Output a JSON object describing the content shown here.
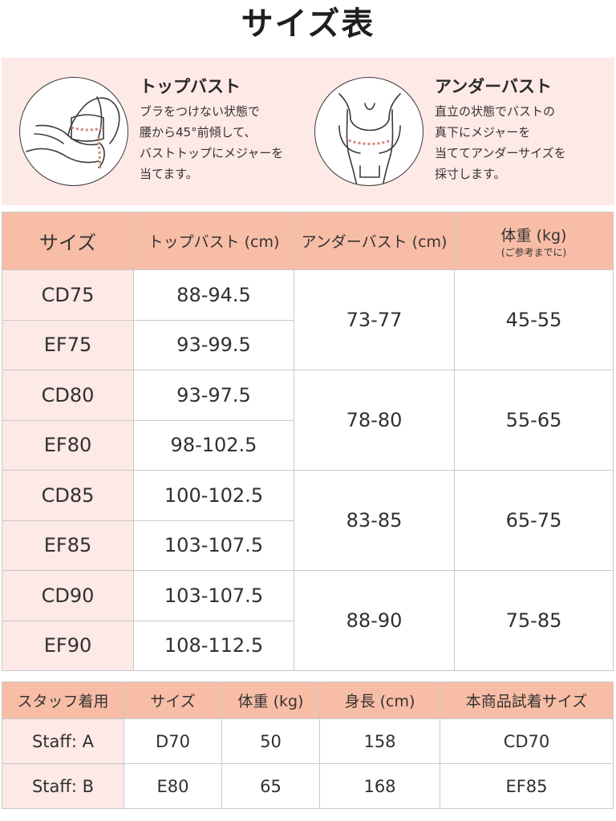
{
  "title": "サイズ表",
  "guides": [
    {
      "heading": "トップバスト",
      "lines": [
        "ブラをつけない状態で",
        "腰から45°前傾して、",
        "バストトップにメジャーを",
        "当てます。"
      ],
      "illustration": "leaning-measure-icon"
    },
    {
      "heading": "アンダーバスト",
      "lines": [
        "直立の状態でバストの",
        "真下にメジャーを",
        "当ててアンダーサイズを",
        "採寸します。"
      ],
      "illustration": "standing-measure-icon"
    }
  ],
  "size_table": {
    "headers": {
      "size": "サイズ",
      "top_bust": "トップバスト (cm)",
      "under_bust": "アンダーバスト (cm)",
      "weight": "体重 (kg)",
      "weight_note": "(ご参考までに)"
    },
    "groups": [
      {
        "under_bust": "73-77",
        "weight": "45-55",
        "rows": [
          {
            "size": "CD75",
            "top_bust": "88-94.5"
          },
          {
            "size": "EF75",
            "top_bust": "93-99.5"
          }
        ]
      },
      {
        "under_bust": "78-80",
        "weight": "55-65",
        "rows": [
          {
            "size": "CD80",
            "top_bust": "93-97.5"
          },
          {
            "size": "EF80",
            "top_bust": "98-102.5"
          }
        ]
      },
      {
        "under_bust": "83-85",
        "weight": "65-75",
        "rows": [
          {
            "size": "CD85",
            "top_bust": "100-102.5"
          },
          {
            "size": "EF85",
            "top_bust": "103-107.5"
          }
        ]
      },
      {
        "under_bust": "88-90",
        "weight": "75-85",
        "rows": [
          {
            "size": "CD90",
            "top_bust": "103-107.5"
          },
          {
            "size": "EF90",
            "top_bust": "108-112.5"
          }
        ]
      }
    ]
  },
  "staff_table": {
    "headers": [
      "スタッフ着用",
      "サイズ",
      "体重 (kg)",
      "身長 (cm)",
      "本商品試着サイズ"
    ],
    "rows": [
      [
        "Staff: A",
        "D70",
        "50",
        "158",
        "CD70"
      ],
      [
        "Staff: B",
        "E80",
        "65",
        "168",
        "EF85"
      ]
    ]
  },
  "colors": {
    "header_bg": "#f8bda6",
    "light_pink": "#fde9e6",
    "border": "#c9c9c9"
  }
}
